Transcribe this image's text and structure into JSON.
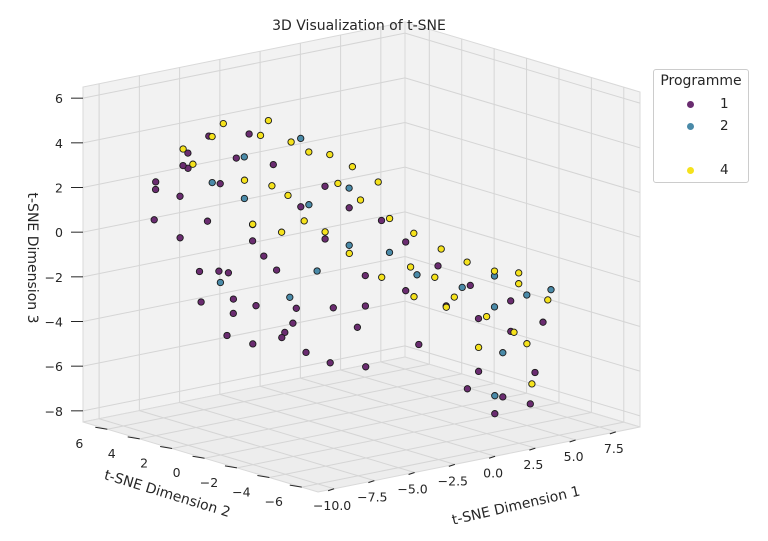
{
  "chart_data": {
    "type": "scatter",
    "projection": "3d",
    "title": "3D Visualization of t-SNE",
    "xlabel": "t-SNE Dimension 1",
    "ylabel": "t-SNE Dimension 2",
    "zlabel": "t-SNE Dimension 3",
    "xticks": [
      "−10.0",
      "−7.5",
      "−5.0",
      "−2.5",
      "0.0",
      "2.5",
      "5.0",
      "7.5"
    ],
    "yticks": [
      "−6",
      "−4",
      "−2",
      "0",
      "2",
      "4",
      "6"
    ],
    "zticks": [
      "−8",
      "−6",
      "−4",
      "−2",
      "0",
      "2",
      "4",
      "6"
    ],
    "xlim": [
      -11,
      9
    ],
    "ylim": [
      -7,
      7.5
    ],
    "zlim": [
      -8.5,
      6.5
    ],
    "grid": true,
    "legend_position": "top-right",
    "legend": {
      "title": "Programme",
      "entries": [
        {
          "label": "1",
          "color": "#6a2c70"
        },
        {
          "label": "2",
          "color": "#4a8aa8"
        },
        {
          "label": "",
          "color": ""
        },
        {
          "label": "4",
          "color": "#f5e21c"
        }
      ]
    },
    "series": [
      {
        "name": "1",
        "color": "#6a2c70",
        "points": [
          [
            -9,
            5,
            2.5
          ],
          [
            -8.5,
            4,
            2
          ],
          [
            -8,
            6,
            1.8
          ],
          [
            -9.5,
            3,
            0.5
          ],
          [
            -8.8,
            2.5,
            -1
          ],
          [
            -8.2,
            1,
            -2
          ],
          [
            -7.5,
            4.5,
            3
          ],
          [
            -7,
            5,
            3.5
          ],
          [
            -7.8,
            3,
            1
          ],
          [
            -8.6,
            1.5,
            -0.8
          ],
          [
            -9.2,
            2,
            -2.2
          ],
          [
            -7.2,
            2,
            -3
          ],
          [
            -6.5,
            3,
            -1.5
          ],
          [
            -6.8,
            1,
            -2.5
          ],
          [
            -6,
            4,
            2.2
          ],
          [
            -5.5,
            5.2,
            4
          ],
          [
            -5,
            4,
            3.2
          ],
          [
            -5.8,
            2.2,
            0
          ],
          [
            -4.5,
            2.8,
            -1
          ],
          [
            -4.8,
            0.5,
            -2.8
          ],
          [
            -4,
            1.5,
            -3.8
          ],
          [
            -3.5,
            2.5,
            -4.5
          ],
          [
            -3,
            3.5,
            -2
          ],
          [
            -3.2,
            5,
            3.8
          ],
          [
            -2.5,
            4.2,
            2.5
          ],
          [
            -2,
            3,
            0.8
          ],
          [
            -1.5,
            2,
            -0.5
          ],
          [
            -2.8,
            0.2,
            -3
          ],
          [
            -1,
            0.5,
            -4.2
          ],
          [
            0,
            1,
            -3.5
          ],
          [
            1,
            2,
            -2.5
          ],
          [
            2,
            0.5,
            -3
          ],
          [
            3,
            -1,
            -3.5
          ],
          [
            4,
            -2,
            -4
          ],
          [
            5,
            -3,
            -4.5
          ],
          [
            3.5,
            -4,
            -7
          ],
          [
            2.5,
            -4.5,
            -7.5
          ],
          [
            4.2,
            -5,
            -7.2
          ],
          [
            1.8,
            -3.5,
            -6.5
          ],
          [
            3,
            -3,
            -6
          ],
          [
            5.5,
            -4,
            -6.2
          ],
          [
            -0.5,
            3,
            1.5
          ],
          [
            0.5,
            2.5,
            0.5
          ],
          [
            1.5,
            1.5,
            0
          ],
          [
            2.5,
            1,
            -1
          ],
          [
            3.5,
            0,
            -2
          ],
          [
            4.5,
            -1,
            -2.8
          ],
          [
            6,
            -2,
            -3.5
          ],
          [
            6.5,
            -3.5,
            -4.2
          ],
          [
            -6.2,
            0,
            -3.8
          ],
          [
            -5.2,
            -0.5,
            -4.5
          ],
          [
            -4.2,
            -1,
            -5
          ],
          [
            -7.5,
            0.5,
            -4
          ],
          [
            -8.8,
            0.8,
            -3.5
          ],
          [
            -2,
            -1,
            -5.5
          ],
          [
            0.8,
            -1.5,
            -4.8
          ],
          [
            -9.6,
            4.5,
            1
          ],
          [
            -6.8,
            5.5,
            2.8
          ]
        ]
      },
      {
        "name": "2",
        "color": "#4a8aa8",
        "points": [
          [
            -7,
            3.5,
            2.5
          ],
          [
            -6,
            2,
            0.8
          ],
          [
            -5,
            3.5,
            1.5
          ],
          [
            -4,
            4.5,
            3
          ],
          [
            -3,
            1,
            -1.5
          ],
          [
            -2,
            2.5,
            1
          ],
          [
            -1,
            4,
            3.5
          ],
          [
            1,
            3,
            1.2
          ],
          [
            2,
            1.5,
            -1.5
          ],
          [
            3,
            0.8,
            -2.5
          ],
          [
            4.5,
            -0.5,
            -3
          ],
          [
            5.5,
            -1.5,
            -3.8
          ],
          [
            6.5,
            -2.5,
            -3.2
          ],
          [
            7.5,
            -3,
            -3
          ],
          [
            4,
            -3.5,
            -5.2
          ],
          [
            2.8,
            -4.2,
            -6.8
          ],
          [
            -8,
            2,
            -1.5
          ],
          [
            -4.5,
            1.2,
            -2.5
          ],
          [
            0,
            2,
            -1
          ],
          [
            6,
            -1,
            -2.6
          ]
        ]
      },
      {
        "name": "4",
        "color": "#f5e21c",
        "points": [
          [
            -7.5,
            4.8,
            3.8
          ],
          [
            -6,
            4.5,
            4.2
          ],
          [
            -4.8,
            5,
            4.5
          ],
          [
            -3.5,
            4,
            4
          ],
          [
            -2.2,
            4.8,
            4.3
          ],
          [
            -1,
            3.5,
            3
          ],
          [
            0,
            3.2,
            2.8
          ],
          [
            1,
            2.8,
            2.2
          ],
          [
            2,
            2.2,
            1.5
          ],
          [
            -0.5,
            2.2,
            1.8
          ],
          [
            0.5,
            1.8,
            1
          ],
          [
            1.5,
            1,
            0.2
          ],
          [
            2.5,
            0.5,
            -0.5
          ],
          [
            3.5,
            -0.2,
            -1.2
          ],
          [
            4.5,
            -0.8,
            -1.8
          ],
          [
            5.5,
            -1.5,
            -2.2
          ],
          [
            6.5,
            -2,
            -2.8
          ],
          [
            7.5,
            -2.8,
            -3.5
          ],
          [
            3,
            -1.5,
            -3
          ],
          [
            4,
            -2.5,
            -3.8
          ],
          [
            5,
            -3.2,
            -4.5
          ],
          [
            2,
            -2,
            -3.2
          ],
          [
            1,
            -1,
            -2.8
          ],
          [
            0,
            0,
            -2
          ],
          [
            -1,
            1,
            -1
          ],
          [
            -2,
            1.5,
            0
          ],
          [
            -3,
            2.8,
            1.5
          ],
          [
            -5.5,
            3,
            2.5
          ],
          [
            -6.5,
            1.5,
            1
          ],
          [
            -8.2,
            3.5,
            3.5
          ],
          [
            -3.8,
            3,
            2
          ],
          [
            -2.8,
            2,
            0.5
          ],
          [
            3.2,
            -2.8,
            -5
          ],
          [
            4.8,
            -4.5,
            -6.5
          ],
          [
            6,
            -3,
            -5.2
          ],
          [
            7,
            -1.5,
            -2.5
          ],
          [
            1.8,
            0,
            -1.8
          ],
          [
            2.8,
            -0.5,
            -2.3
          ],
          [
            -1.8,
            3.8,
            3.5
          ],
          [
            -4.2,
            2,
            0.2
          ]
        ]
      }
    ]
  }
}
